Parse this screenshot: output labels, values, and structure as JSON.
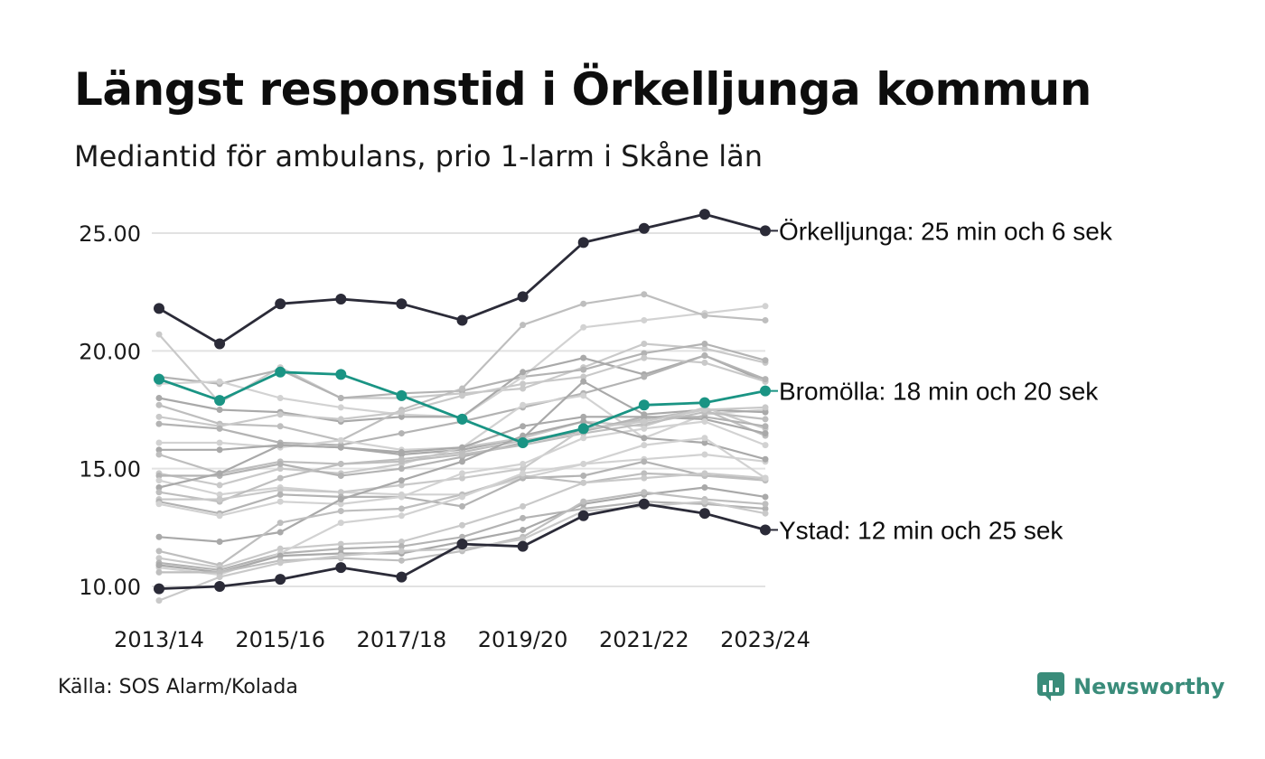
{
  "title": "Längst responstid i Örkelljunga kommun",
  "subtitle": "Mediantid för ambulans, prio 1-larm i Skåne län",
  "source": "Källa: SOS Alarm/Kolada",
  "brand": {
    "name": "Newsworthy",
    "icon": "newsworthy-logo-icon",
    "color": "#3a8c7a"
  },
  "colors": {
    "highlight_dark": "#2b2b38",
    "highlight_teal": "#1a9484",
    "background_series": "#c4c4c4",
    "grid": "#e2e2e2"
  },
  "chart_data": {
    "type": "line",
    "title": "Längst responstid i Örkelljunga kommun",
    "subtitle": "Mediantid för ambulans, prio 1-larm i Skåne län",
    "x": [
      "2013/14",
      "2014/15",
      "2015/16",
      "2016/17",
      "2017/18",
      "2018/19",
      "2019/20",
      "2020/21",
      "2021/22",
      "2022/23",
      "2023/24"
    ],
    "x_tick_labels": [
      "2013/14",
      "2015/16",
      "2017/18",
      "2019/20",
      "2021/22",
      "2023/24"
    ],
    "y_tick_labels": [
      "10.00",
      "15.00",
      "20.00",
      "25.00"
    ],
    "ylim": [
      9.5,
      26.0
    ],
    "grid": "horizontal",
    "highlighted": [
      {
        "name": "Örkelljunga",
        "label": "Örkelljunga: 25 min och 6 sek",
        "color": "#2b2b38",
        "values": [
          21.8,
          20.3,
          22.0,
          22.2,
          22.0,
          21.3,
          22.3,
          24.6,
          25.2,
          25.8,
          25.1
        ]
      },
      {
        "name": "Bromölla",
        "label": "Bromölla: 18 min och 20 sek",
        "color": "#1a9484",
        "values": [
          18.8,
          17.9,
          19.1,
          19.0,
          18.1,
          17.1,
          16.1,
          16.7,
          17.7,
          17.8,
          18.3
        ]
      },
      {
        "name": "Ystad",
        "label": "Ystad: 12 min och 25 sek",
        "color": "#2b2b38",
        "values": [
          9.9,
          10.0,
          10.3,
          10.8,
          10.4,
          11.8,
          11.7,
          13.0,
          13.5,
          13.1,
          12.4
        ]
      }
    ],
    "series": [
      {
        "values": [
          20.7,
          17.8,
          19.3,
          18.0,
          18.0,
          18.2,
          18.4,
          19.3,
          20.3,
          20.1,
          19.5
        ]
      },
      {
        "values": [
          18.9,
          18.6,
          19.2,
          18.0,
          18.2,
          18.3,
          18.9,
          19.2,
          19.9,
          20.3,
          19.6
        ]
      },
      {
        "values": [
          18.6,
          18.7,
          18.0,
          17.6,
          17.3,
          17.2,
          18.9,
          21.0,
          21.3,
          21.6,
          21.9
        ]
      },
      {
        "values": [
          18.0,
          17.5,
          17.4,
          17.0,
          17.2,
          17.2,
          19.1,
          19.7,
          19.0,
          19.8,
          18.7
        ]
      },
      {
        "values": [
          17.7,
          16.9,
          16.8,
          16.2,
          17.5,
          18.4,
          21.1,
          22.0,
          22.4,
          21.5,
          21.3
        ]
      },
      {
        "values": [
          17.2,
          16.8,
          17.3,
          17.1,
          17.4,
          18.1,
          18.6,
          18.9,
          19.7,
          19.5,
          18.7
        ]
      },
      {
        "values": [
          16.9,
          16.7,
          16.1,
          16.0,
          16.5,
          17.0,
          17.6,
          18.2,
          18.9,
          19.8,
          18.8
        ]
      },
      {
        "values": [
          16.1,
          16.1,
          15.9,
          16.2,
          15.8,
          15.9,
          17.7,
          18.1,
          16.3,
          17.3,
          17.5
        ]
      },
      {
        "values": [
          15.8,
          15.8,
          16.0,
          15.9,
          15.6,
          15.8,
          16.3,
          18.7,
          17.3,
          17.5,
          17.4
        ]
      },
      {
        "values": [
          15.6,
          14.8,
          15.3,
          15.2,
          15.4,
          15.7,
          16.2,
          16.6,
          17.1,
          17.5,
          16.4
        ]
      },
      {
        "values": [
          14.8,
          14.3,
          15.0,
          14.8,
          15.2,
          15.9,
          16.3,
          17.0,
          16.8,
          17.6,
          16.7
        ]
      },
      {
        "values": [
          14.7,
          14.7,
          15.2,
          14.7,
          15.0,
          15.5,
          16.1,
          16.6,
          17.2,
          17.2,
          16.8
        ]
      },
      {
        "values": [
          14.5,
          13.9,
          14.2,
          14.0,
          13.9,
          13.9,
          14.6,
          15.2,
          15.4,
          15.6,
          15.3
        ]
      },
      {
        "values": [
          14.2,
          14.8,
          16.0,
          15.9,
          15.7,
          15.9,
          16.8,
          17.2,
          17.2,
          17.1,
          16.5
        ]
      },
      {
        "values": [
          14.0,
          13.6,
          14.6,
          15.2,
          15.3,
          15.6,
          16.0,
          16.5,
          16.9,
          17.4,
          17.1
        ]
      },
      {
        "values": [
          13.7,
          13.7,
          14.1,
          14.0,
          14.3,
          14.6,
          15.0,
          16.7,
          17.0,
          17.5,
          17.6
        ]
      },
      {
        "values": [
          13.6,
          13.1,
          13.9,
          13.8,
          13.8,
          13.4,
          14.6,
          14.7,
          15.3,
          14.7,
          14.6
        ]
      },
      {
        "values": [
          13.5,
          13.0,
          13.6,
          13.5,
          13.8,
          14.8,
          15.2,
          16.3,
          16.7,
          17.0,
          16.0
        ]
      },
      {
        "values": [
          12.1,
          11.9,
          12.3,
          13.7,
          14.5,
          15.3,
          16.4,
          17.0,
          16.3,
          16.1,
          15.4
        ]
      },
      {
        "values": [
          11.5,
          10.9,
          12.7,
          13.2,
          13.3,
          13.9,
          14.7,
          14.4,
          14.8,
          14.7,
          14.5
        ]
      },
      {
        "values": [
          11.2,
          10.8,
          11.6,
          11.8,
          11.9,
          12.6,
          13.4,
          14.4,
          14.6,
          14.8,
          14.6
        ]
      },
      {
        "values": [
          11.0,
          10.7,
          11.4,
          11.6,
          11.7,
          12.1,
          12.9,
          13.3,
          13.6,
          13.5,
          13.3
        ]
      },
      {
        "values": [
          10.8,
          10.5,
          11.4,
          12.7,
          13.0,
          13.8,
          14.8,
          15.2,
          16.0,
          16.3,
          14.6
        ]
      },
      {
        "values": [
          10.9,
          10.6,
          11.3,
          11.4,
          11.4,
          11.9,
          12.4,
          13.5,
          13.9,
          14.2,
          13.8
        ]
      },
      {
        "values": [
          10.6,
          10.6,
          11.1,
          11.2,
          11.1,
          11.5,
          12.1,
          13.6,
          14.0,
          13.7,
          13.5
        ]
      },
      {
        "values": [
          9.4,
          10.4,
          11.0,
          11.3,
          11.5,
          11.6,
          12.0,
          13.2,
          13.4,
          13.6,
          13.1
        ]
      }
    ]
  }
}
